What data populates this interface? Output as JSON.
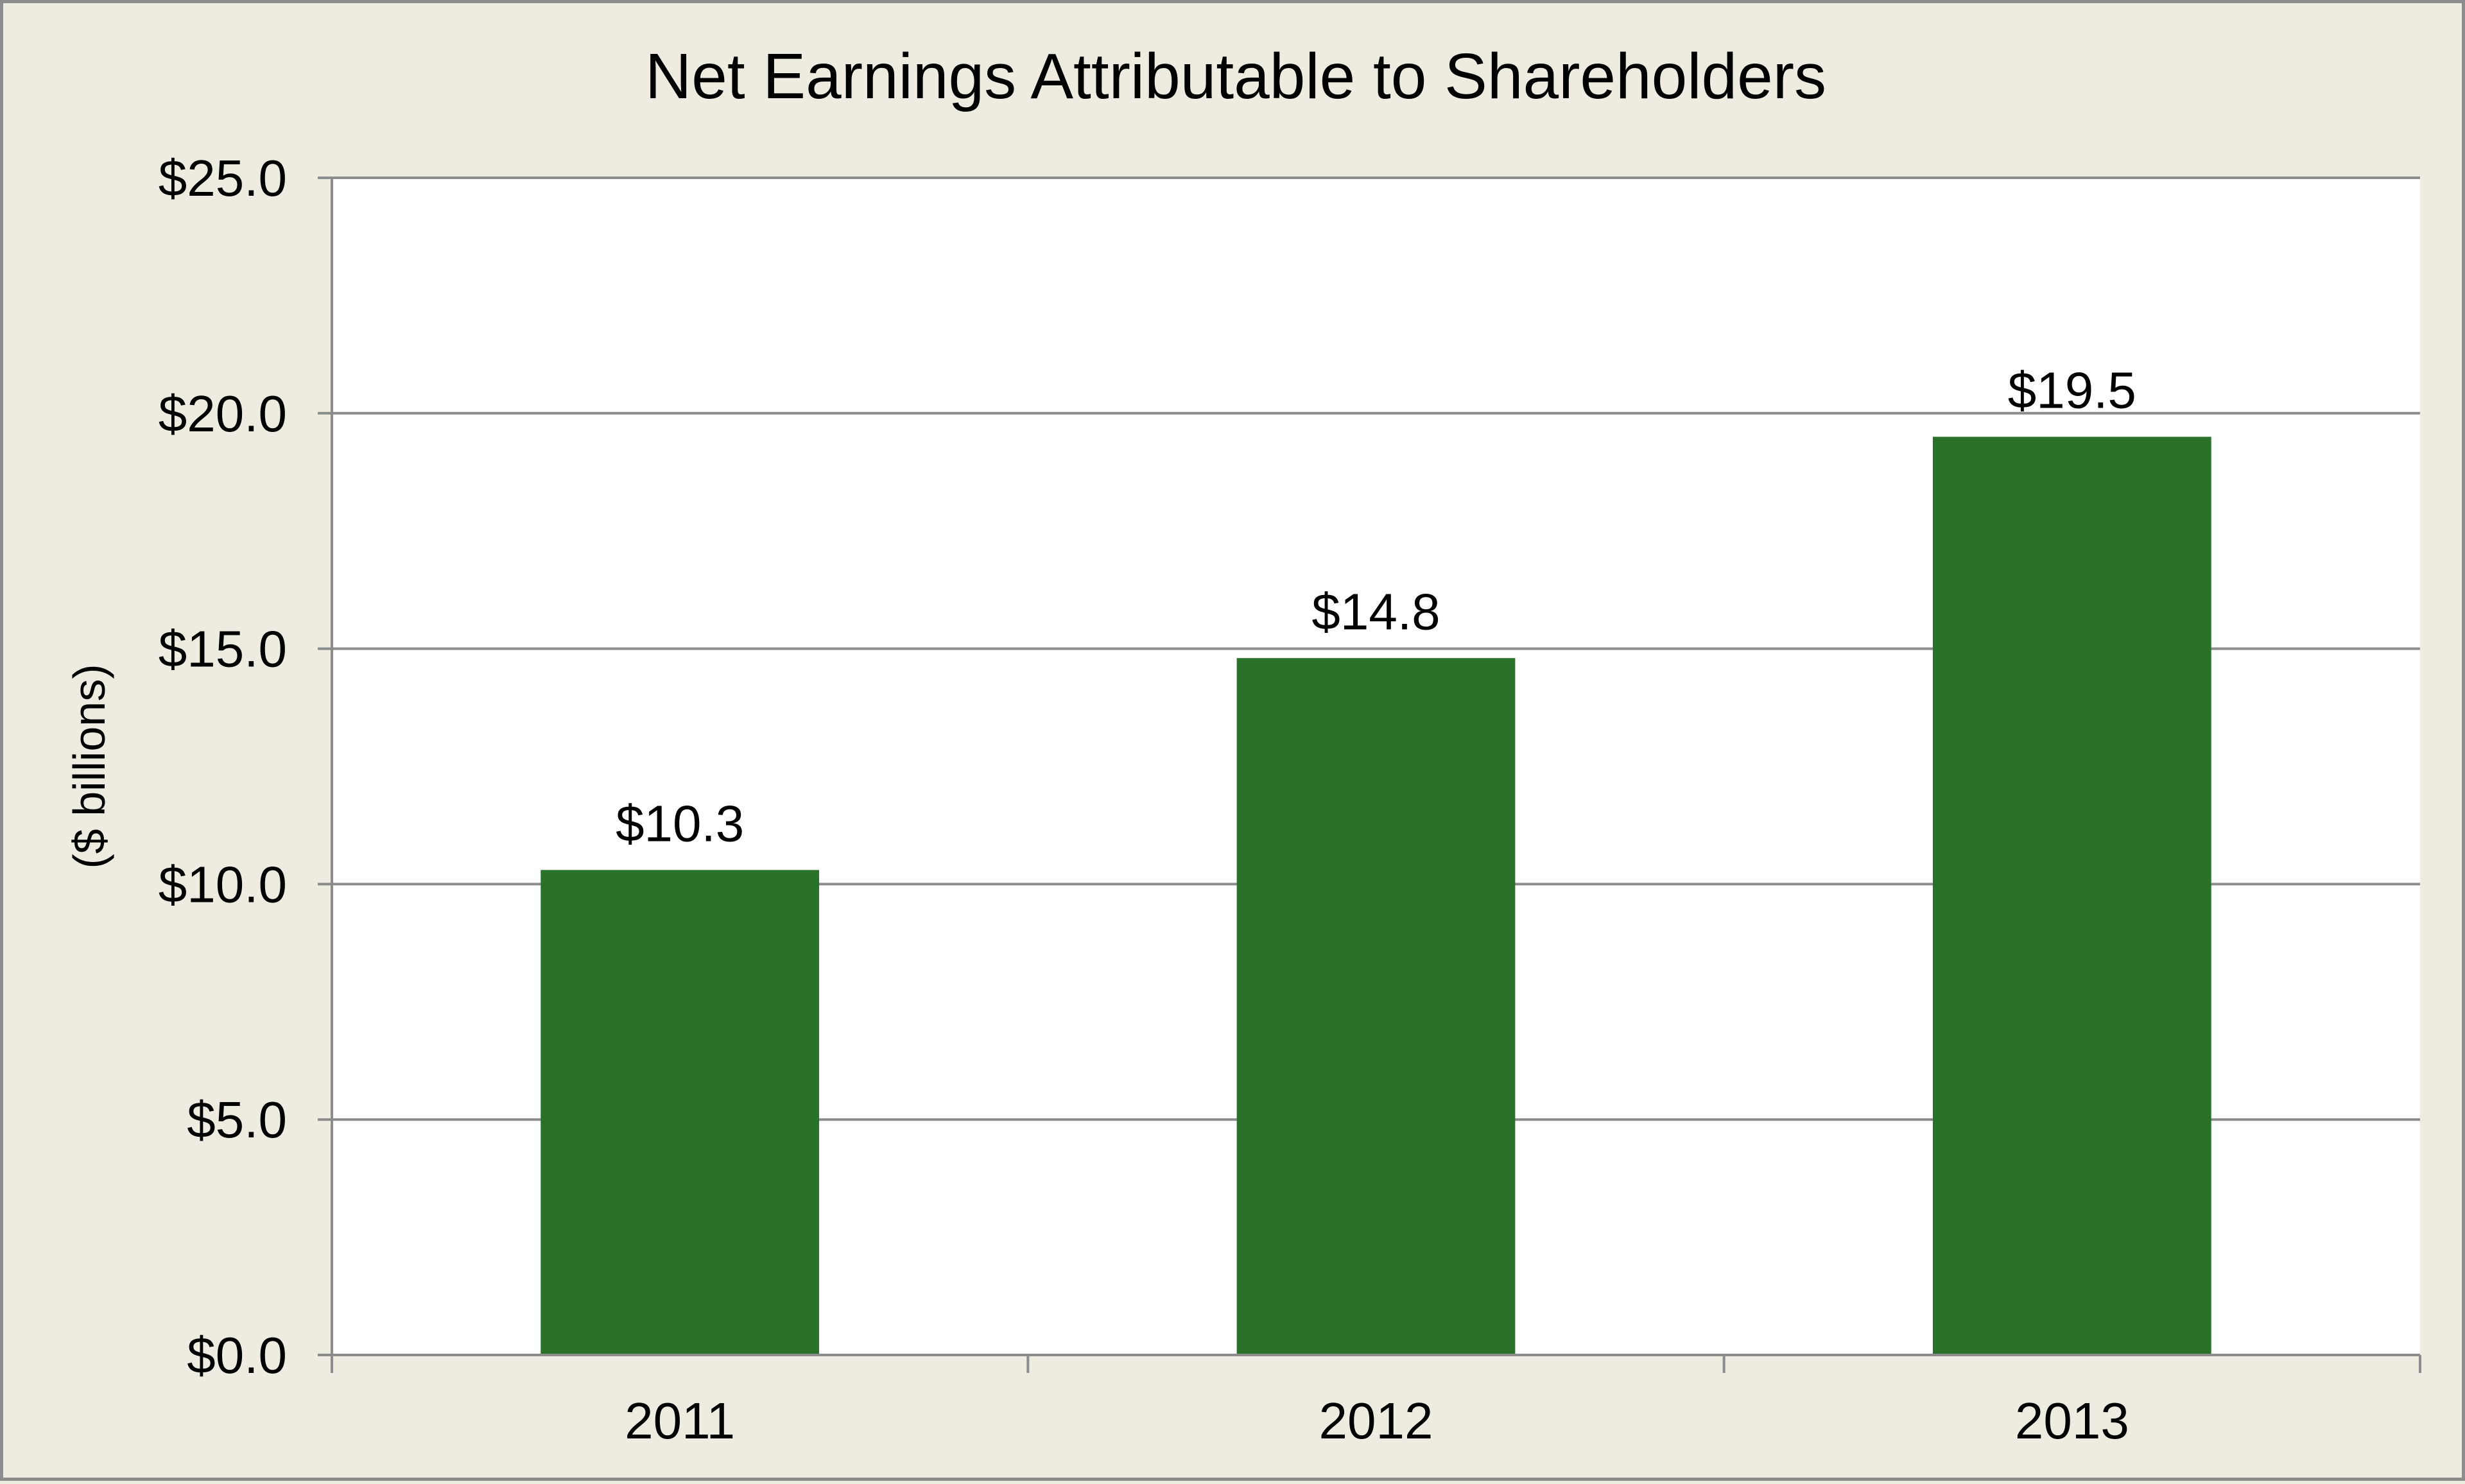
{
  "chart_data": {
    "type": "bar",
    "title": "Net Earnings Attributable to Shareholders",
    "xlabel": "",
    "ylabel": "($ billions)",
    "categories": [
      "2011",
      "2012",
      "2013"
    ],
    "values": [
      10.3,
      14.8,
      19.5
    ],
    "data_labels": [
      "$10.3",
      "$14.8",
      "$19.5"
    ],
    "ylim": [
      0,
      25
    ],
    "y_ticks": [
      0,
      5,
      10,
      15,
      20,
      25
    ],
    "y_tick_labels": [
      "$0.0",
      "$5.0",
      "$10.0",
      "$15.0",
      "$20.0",
      "$25.0"
    ],
    "grid": true,
    "legend": "none",
    "colors": {
      "bar": "#2a7229",
      "plot_background": "#ffffff",
      "chart_background": "#eeebe0",
      "gridline": "#8c8c8c"
    }
  }
}
